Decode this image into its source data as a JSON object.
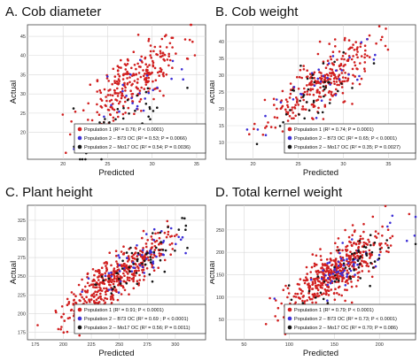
{
  "colors": {
    "Population 1": "#d11f1f",
    "Population 2 – B73 OC": "#3d2fd6",
    "Population 2 – Mo17 OC": "#151515"
  },
  "chart_data": [
    {
      "type": "scatter",
      "title": "A. Cob diameter",
      "xlabel": "Predicted",
      "ylabel": "Actual",
      "xlim": [
        16,
        36
      ],
      "ylim": [
        13,
        48
      ],
      "xticks": [
        20,
        25,
        30,
        35
      ],
      "yticks": [
        20,
        25,
        30,
        35,
        40,
        45
      ],
      "grid": true,
      "legend_position": "bottom-right",
      "legend": [
        "Population 1 (R² = 0.76; P < 0.0001)",
        "Population 2 – B73 OC (R² = 0.53; P = 0.0066)",
        "Population 2 – Mo17 OC (R² = 0.54; P = 0.0036)"
      ],
      "series": [
        {
          "name": "Population 1",
          "color": "#d11f1f",
          "n": 280,
          "points": [
            [
              27.9,
              35.2
            ],
            [
              29.3,
              33.1
            ],
            [
              26.5,
              36.8
            ],
            [
              28.4,
              29.7
            ],
            [
              30.1,
              37.5
            ],
            [
              25.8,
              30.9
            ],
            [
              27.2,
              34.1
            ],
            [
              31.0,
              35.8
            ],
            [
              24.9,
              28.2
            ],
            [
              28.8,
              38.6
            ],
            [
              26.2,
              32.5
            ],
            [
              29.7,
              31.4
            ],
            [
              23.8,
              27.3
            ],
            [
              30.6,
              40.2
            ],
            [
              27.6,
              30.8
            ]
          ]
        },
        {
          "name": "Population 2 – B73 OC",
          "color": "#3d2fd6",
          "n": 32,
          "points": [
            [
              25.4,
              27.1
            ],
            [
              27.1,
              29.5
            ],
            [
              28.6,
              30.2
            ],
            [
              26.3,
              25.4
            ],
            [
              29.2,
              28.8
            ],
            [
              24.6,
              24.1
            ],
            [
              27.8,
              27.6
            ],
            [
              30.1,
              31.0
            ]
          ]
        },
        {
          "name": "Population 2 – Mo17 OC",
          "color": "#151515",
          "n": 46,
          "points": [
            [
              23.5,
              21.8
            ],
            [
              25.2,
              22.6
            ],
            [
              27.4,
              24.9
            ],
            [
              28.9,
              22.3
            ],
            [
              24.4,
              19.6
            ],
            [
              26.8,
              26.3
            ],
            [
              29.6,
              24.1
            ],
            [
              22.1,
              20.5
            ],
            [
              27.9,
              18.2
            ],
            [
              25.9,
              23.4
            ]
          ]
        }
      ]
    },
    {
      "type": "scatter",
      "title": "B. Cob weight",
      "xlabel": "Predicted",
      "ylabel": "Actual",
      "xlim": [
        17,
        38
      ],
      "ylim": [
        5,
        45
      ],
      "xticks": [
        20,
        25,
        30,
        35
      ],
      "yticks": [
        10,
        15,
        20,
        25,
        30,
        35,
        40
      ],
      "grid": true,
      "legend_position": "bottom-right",
      "legend": [
        "Population 1 (R² = 0.74; P = 0.0001)",
        "Population 2 – B73 OC (R² = 0.65; P < 0.0001)",
        "Population 2 – Mo17 OC (R² = 0.35; P = 0.0027)"
      ],
      "series": [
        {
          "name": "Population 1",
          "color": "#d11f1f",
          "n": 300,
          "points": [
            [
              26.4,
              27.2
            ],
            [
              28.7,
              30.5
            ],
            [
              24.9,
              22.8
            ],
            [
              30.2,
              33.1
            ],
            [
              27.1,
              25.4
            ],
            [
              32.4,
              36.2
            ],
            [
              23.6,
              19.8
            ],
            [
              29.5,
              28.9
            ],
            [
              26.0,
              31.4
            ],
            [
              31.3,
              29.6
            ],
            [
              22.4,
              17.5
            ],
            [
              28.0,
              24.1
            ]
          ]
        },
        {
          "name": "Population 2 – B73 OC",
          "color": "#3d2fd6",
          "n": 34,
          "points": [
            [
              27.5,
              28.1
            ],
            [
              29.2,
              31.4
            ],
            [
              25.4,
              24.3
            ],
            [
              30.6,
              30.2
            ],
            [
              26.8,
              26.9
            ],
            [
              28.4,
              33.5
            ]
          ]
        },
        {
          "name": "Population 2 – Mo17 OC",
          "color": "#151515",
          "n": 42,
          "points": [
            [
              25.2,
              22.4
            ],
            [
              27.9,
              25.8
            ],
            [
              24.1,
              19.6
            ],
            [
              29.8,
              27.5
            ],
            [
              26.6,
              30.1
            ],
            [
              23.0,
              14.9
            ],
            [
              28.5,
              21.7
            ]
          ]
        }
      ]
    },
    {
      "type": "scatter",
      "title": "C. Plant height",
      "xlabel": "Predicted",
      "ylabel": "Actual",
      "xlim": [
        168,
        327
      ],
      "ylim": [
        165,
        345
      ],
      "xticks": [
        175,
        200,
        225,
        250,
        275,
        300
      ],
      "yticks": [
        175,
        200,
        225,
        250,
        275,
        300,
        325
      ],
      "grid": true,
      "legend_position": "bottom-right",
      "legend": [
        "Population 1 (R² = 0.91; P < 0.0001)",
        "Population 2 – B73 OC (R² = 0.69 ; P < 0.0001)",
        "Population 2 – Mo17 OC (R² = 0.56; P = 0.0011)"
      ],
      "series": [
        {
          "name": "Population 1",
          "color": "#d11f1f",
          "n": 460,
          "points": [
            [
              240.5,
              242.1
            ],
            [
              255.2,
              258.6
            ],
            [
              227.4,
              222.3
            ],
            [
              270.1,
              275.8
            ],
            [
              212.6,
              208.4
            ],
            [
              285.3,
              292.7
            ],
            [
              198.4,
              195.2
            ],
            [
              262.8,
              248.3
            ],
            [
              248.9,
              265.4
            ],
            [
              232.1,
              238.9
            ],
            [
              301.2,
              305.6
            ],
            [
              219.5,
              230.2
            ]
          ]
        },
        {
          "name": "Population 2 – B73 OC",
          "color": "#3d2fd6",
          "n": 55,
          "points": [
            [
              262.3,
              268.4
            ],
            [
              278.6,
              282.1
            ],
            [
              250.4,
              256.9
            ],
            [
              289.1,
              295.3
            ],
            [
              270.8,
              262.5
            ]
          ]
        },
        {
          "name": "Population 2 – Mo17 OC",
          "color": "#151515",
          "n": 55,
          "points": [
            [
              258.7,
              262.0
            ],
            [
              274.2,
              279.5
            ],
            [
              282.9,
              288.3
            ],
            [
              266.1,
              270.4
            ],
            [
              291.5,
              284.6
            ]
          ]
        }
      ]
    },
    {
      "type": "scatter",
      "title": "D. Total kernel weight",
      "xlabel": "Predicted",
      "ylabel": "Actual",
      "xlim": [
        30,
        240
      ],
      "ylim": [
        5,
        305
      ],
      "xticks": [
        50,
        100,
        150,
        200
      ],
      "yticks": [
        50,
        100,
        150,
        200,
        250
      ],
      "grid": true,
      "legend_position": "bottom-right",
      "legend": [
        "Population 1 (R² = 0.79; P < 0.0001)",
        "Population 2 – B73 OC (R² = 0.73; P < 0.0001)",
        "Population 2 – Mo17 OC (R² = 0.70; P = 0.086)"
      ],
      "series": [
        {
          "name": "Population 1",
          "color": "#d11f1f",
          "n": 480,
          "points": [
            [
              150.2,
              162.4
            ],
            [
              165.8,
              178.1
            ],
            [
              138.4,
              140.6
            ],
            [
              178.3,
              190.2
            ],
            [
              125.6,
              118.3
            ],
            [
              188.9,
              204.5
            ],
            [
              112.1,
              96.8
            ],
            [
              158.4,
              150.2
            ],
            [
              145.7,
              185.3
            ],
            [
              170.2,
              145.9
            ],
            [
              95.3,
              80.4
            ],
            [
              200.6,
              215.7
            ]
          ]
        },
        {
          "name": "Population 2 – B73 OC",
          "color": "#3d2fd6",
          "n": 58,
          "points": [
            [
              160.3,
              170.5
            ],
            [
              175.8,
              182.4
            ],
            [
              148.6,
              152.1
            ],
            [
              185.2,
              195.8
            ],
            [
              168.4,
              158.9
            ]
          ]
        },
        {
          "name": "Population 2 – Mo17 OC",
          "color": "#151515",
          "n": 55,
          "points": [
            [
              162.5,
              165.8
            ],
            [
              178.1,
              186.2
            ],
            [
              150.9,
              148.4
            ],
            [
              190.4,
              176.3
            ],
            [
              172.6,
              198.5
            ]
          ]
        }
      ]
    }
  ]
}
